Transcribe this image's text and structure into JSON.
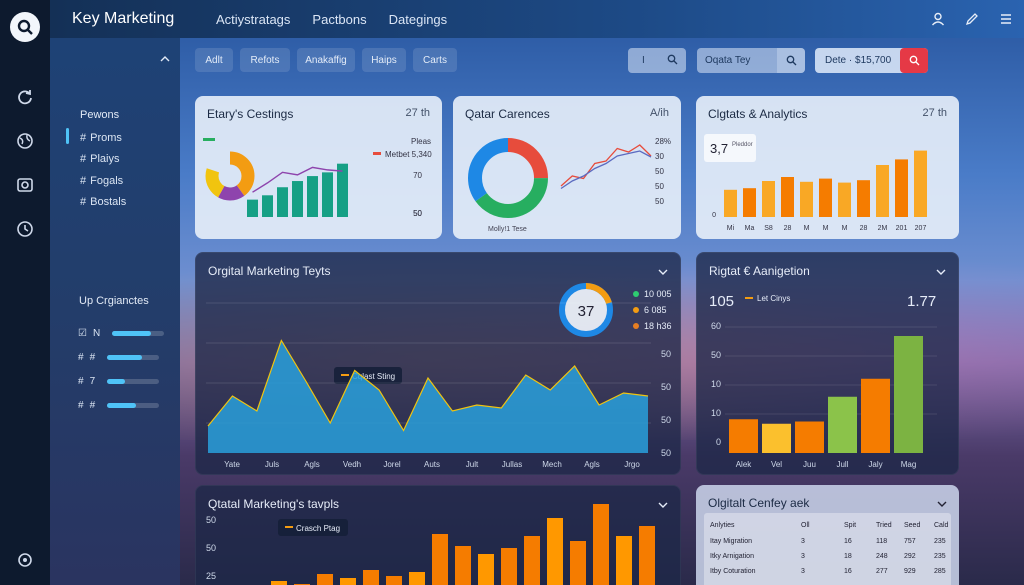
{
  "app": {
    "title": "Key Marketing"
  },
  "topnav": [
    "Actiystratags",
    "Pactbons",
    "Dategings"
  ],
  "toolbar": {
    "tabs": [
      "Adlt",
      "Refots",
      "Anakaffig",
      "Haips",
      "Carts"
    ],
    "search1_value": "I",
    "search2_value": "Oqata Tey",
    "date_value": "Dete · $15,700"
  },
  "sidebar": {
    "section1_title": "Pewons",
    "items": [
      {
        "icon": "#",
        "label": "Proms"
      },
      {
        "icon": "#",
        "label": "Plaiys"
      },
      {
        "icon": "#",
        "label": "Fogals"
      },
      {
        "icon": "#",
        "label": "Bostals"
      }
    ],
    "section2_title": "Up Crgianctes",
    "bar_items": [
      {
        "icon": "☑",
        "label": "N",
        "fill": 0.75
      },
      {
        "icon": "#",
        "label": "#",
        "fill": 0.68
      },
      {
        "icon": "#",
        "label": "7",
        "fill": 0.35
      },
      {
        "icon": "#",
        "label": "#",
        "fill": 0.55
      }
    ]
  },
  "cards": {
    "c1": {
      "title": "Etary's Cestings",
      "badge": "27 th",
      "legend1": "Pleas",
      "legend2": "Metbet 5,340"
    },
    "c2": {
      "title": "Qatar Carences",
      "badge": "A/ih",
      "caption": "Molly!1 Tese"
    },
    "c3": {
      "title": "Clgtats & Analytics",
      "badge": "27 th",
      "stat": "3,7",
      "stat_note": "Pleddor",
      "xlabels": [
        "Mi",
        "Ma",
        "S8",
        "28",
        "M",
        "M",
        "M",
        "28",
        "2M",
        "201",
        "207"
      ]
    },
    "c4": {
      "title": "Orgital Marketing Teyts",
      "annotation": "Cqlast Sting",
      "gauge": "37",
      "legend": [
        {
          "color": "#2ecc71",
          "label": "10 005"
        },
        {
          "color": "#f39c12",
          "label": "6 085"
        },
        {
          "color": "#e67e22",
          "label": "18 h36"
        }
      ],
      "xlabels": [
        "Yate",
        "Juls",
        "Agls",
        "Vedh",
        "Jorel",
        "Auts",
        "Jult",
        "Jullas",
        "Mech",
        "Agls",
        "Jrgo"
      ]
    },
    "c5": {
      "title": "Rigtat € Aanigetion",
      "stat_left": "105",
      "stat_note": "Let Cinys",
      "stat_right": "1.77",
      "xlabels": [
        "Alek",
        "Vel",
        "Juu",
        "Jull",
        "Jaly",
        "Mag"
      ]
    },
    "c6": {
      "title": "Qtatal Marketing's tavpls",
      "annotation": "Crasch Ptag"
    },
    "c7": {
      "title": "Olgitalt Cenfey aek",
      "headers": [
        "Anlyties",
        "Oll",
        "Spit",
        "Tried",
        "Seed",
        "Cald"
      ],
      "rows": [
        [
          "Itay Migration",
          "3",
          "16",
          "118",
          "757",
          "235"
        ],
        [
          "Itky Arnigation",
          "3",
          "18",
          "248",
          "292",
          "235"
        ],
        [
          "Itby Coturation",
          "3",
          "16",
          "277",
          "929",
          "285"
        ]
      ]
    }
  },
  "chart_data": [
    {
      "type": "bar",
      "title": "Etary's Cestings",
      "values": [
        28,
        35,
        48,
        58,
        66,
        72,
        86
      ],
      "line": [
        40,
        55,
        72,
        68,
        80,
        76,
        74
      ],
      "yticks": [
        "70",
        "50",
        "50"
      ],
      "ylim": [
        0,
        100
      ]
    },
    {
      "type": "pie",
      "title": "Qatar Carences",
      "slices": [
        {
          "value": 25,
          "color": "#e74c3c"
        },
        {
          "value": 40,
          "color": "#27ae60"
        },
        {
          "value": 35,
          "color": "#1e88e5"
        }
      ],
      "series": [
        {
          "color": "#e74c3c",
          "values": [
            10,
            30,
            25,
            55,
            60,
            85,
            78,
            92,
            70
          ]
        },
        {
          "color": "#5c6bc0",
          "values": [
            5,
            20,
            30,
            45,
            55,
            70,
            75,
            80,
            68
          ]
        }
      ],
      "yticks": [
        "28%",
        "30",
        "50",
        "50",
        "50"
      ]
    },
    {
      "type": "bar",
      "title": "Clgtats & Analytics",
      "values": [
        34,
        36,
        45,
        50,
        44,
        48,
        43,
        46,
        65,
        72,
        83
      ],
      "ylim": [
        0,
        100
      ],
      "yticks": [
        "0"
      ]
    },
    {
      "type": "area",
      "title": "Orgital Marketing Teyts",
      "values": [
        18,
        38,
        28,
        75,
        48,
        20,
        55,
        42,
        15,
        50,
        28,
        32,
        30,
        52,
        42,
        58,
        32,
        40,
        38
      ],
      "yticks": [
        "50",
        "50",
        "50",
        "50"
      ],
      "ylim": [
        0,
        100
      ]
    },
    {
      "type": "bar",
      "title": "Rigtat € Aanigetion",
      "categories": [
        "Alek",
        "Vel",
        "Juu",
        "Jull",
        "Jaly",
        "Mag"
      ],
      "values": [
        15,
        13,
        14,
        25,
        33,
        52
      ],
      "colors": [
        "#f57c00",
        "#fbc02d",
        "#f57c00",
        "#8bc34a",
        "#f57c00",
        "#7cb342"
      ],
      "yticks": [
        "60",
        "50",
        "10",
        "10",
        "0"
      ],
      "ylim": [
        0,
        60
      ]
    },
    {
      "type": "bar",
      "title": "Qtatal Marketing's tavpls",
      "values": [
        8,
        15,
        12,
        22,
        18,
        26,
        20,
        24,
        62,
        50,
        42,
        48,
        60,
        78,
        55,
        92,
        60,
        70
      ],
      "yticks": [
        "50",
        "50",
        "25"
      ],
      "ylim": [
        0,
        100
      ]
    }
  ]
}
